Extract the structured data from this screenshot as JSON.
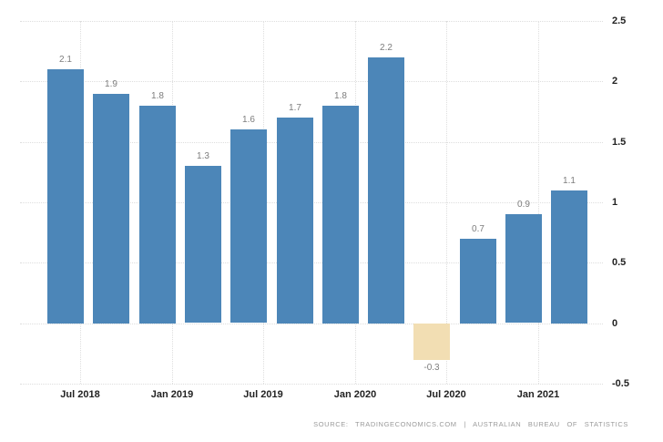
{
  "chart_data": {
    "type": "bar",
    "values": [
      2.1,
      1.9,
      1.8,
      1.3,
      1.6,
      1.7,
      1.8,
      2.2,
      -0.3,
      0.7,
      0.9,
      1.1
    ],
    "bar_value_labels": [
      "2.1",
      "1.9",
      "1.8",
      "1.3",
      "1.6",
      "1.7",
      "1.8",
      "2.2",
      "-0.3",
      "0.7",
      "0.9",
      "1.1"
    ],
    "x_tick_labels": [
      "Jul 2018",
      "Jan 2019",
      "Jul 2019",
      "Jan 2020",
      "Jul 2020",
      "Jan 2021"
    ],
    "y_tick_labels": [
      "2.5",
      "2",
      "1.5",
      "1",
      "0.5",
      "0",
      "-0.5"
    ],
    "y_ticks": [
      2.5,
      2,
      1.5,
      1,
      0.5,
      0,
      -0.5
    ],
    "ylim": [
      -0.5,
      2.5
    ],
    "grid": "dotted",
    "legend": "none",
    "y_axis_side": "right",
    "colors": {
      "bar_positive": "#4c86b8",
      "bar_negative": "#f2deb3",
      "grid": "#dedede",
      "value_label": "#7d7d7d",
      "axis_label": "#222222",
      "source_text": "#9a9a9a",
      "background": "#ffffff"
    },
    "source": "SOURCE: TRADINGECONOMICS.COM | AUSTRALIAN BUREAU OF STATISTICS"
  }
}
